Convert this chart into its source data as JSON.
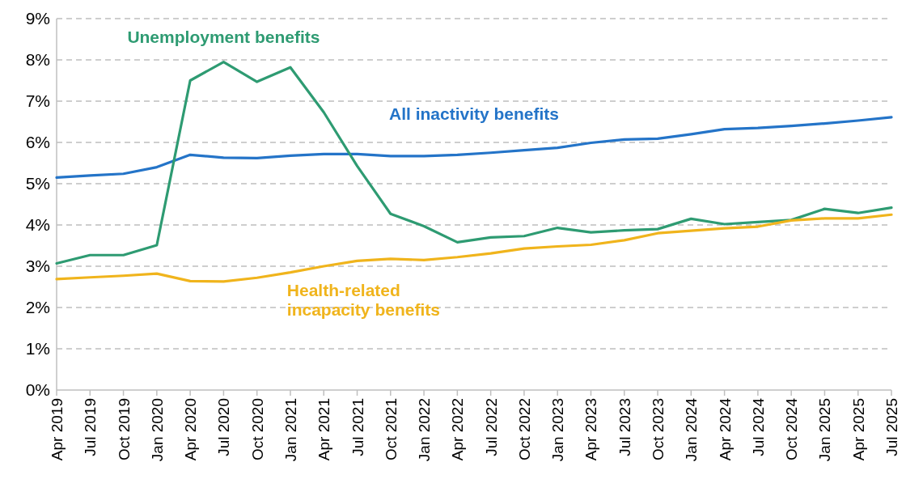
{
  "chart_data": {
    "type": "line",
    "categories": [
      "Apr 2019",
      "Jul 2019",
      "Oct 2019",
      "Jan 2020",
      "Apr 2020",
      "Jul 2020",
      "Oct 2020",
      "Jan 2021",
      "Apr 2021",
      "Jul 2021",
      "Oct 2021",
      "Jan 2022",
      "Apr 2022",
      "Jul 2022",
      "Oct 2022",
      "Jan 2023",
      "Apr 2023",
      "Jul 2023",
      "Oct 2023",
      "Jan 2024",
      "Apr 2024",
      "Jul 2024",
      "Oct 2024",
      "Jan 2025",
      "Apr 2025",
      "Jul 2025"
    ],
    "series": [
      {
        "name": "All inactivity benefits",
        "color": "#2474c8",
        "values": [
          5.15,
          5.2,
          5.24,
          5.4,
          5.7,
          5.63,
          5.62,
          5.68,
          5.72,
          5.72,
          5.67,
          5.67,
          5.7,
          5.75,
          5.81,
          5.87,
          5.99,
          6.07,
          6.09,
          6.2,
          6.32,
          6.35,
          6.4,
          6.46,
          6.53,
          6.61
        ]
      },
      {
        "name": "Unemployment benefits",
        "color": "#2e9b72",
        "values": [
          3.07,
          3.27,
          3.27,
          3.51,
          7.5,
          7.95,
          7.47,
          7.82,
          6.73,
          5.43,
          4.27,
          3.97,
          3.58,
          3.7,
          3.73,
          3.93,
          3.82,
          3.87,
          3.9,
          4.15,
          4.02,
          4.07,
          4.12,
          4.39,
          4.29,
          4.42
        ]
      },
      {
        "name": "Health-related incapacity benefits",
        "color": "#f0b41c",
        "values": [
          2.69,
          2.73,
          2.77,
          2.82,
          2.64,
          2.63,
          2.72,
          2.85,
          3.0,
          3.13,
          3.18,
          3.15,
          3.22,
          3.31,
          3.43,
          3.48,
          3.52,
          3.63,
          3.8,
          3.86,
          3.92,
          3.96,
          4.11,
          4.16,
          4.16,
          4.25
        ]
      }
    ],
    "ylim": [
      0,
      9
    ],
    "yticks": [
      {
        "value": 0,
        "label": "0%"
      },
      {
        "value": 1,
        "label": "1%"
      },
      {
        "value": 2,
        "label": "2%"
      },
      {
        "value": 3,
        "label": "3%"
      },
      {
        "value": 4,
        "label": "4%"
      },
      {
        "value": 5,
        "label": "5%"
      },
      {
        "value": 6,
        "label": "6%"
      },
      {
        "value": 7,
        "label": "7%"
      },
      {
        "value": 8,
        "label": "8%"
      },
      {
        "value": 9,
        "label": "9%"
      }
    ],
    "grid": "y",
    "marker": "none",
    "line_style": "solid"
  }
}
